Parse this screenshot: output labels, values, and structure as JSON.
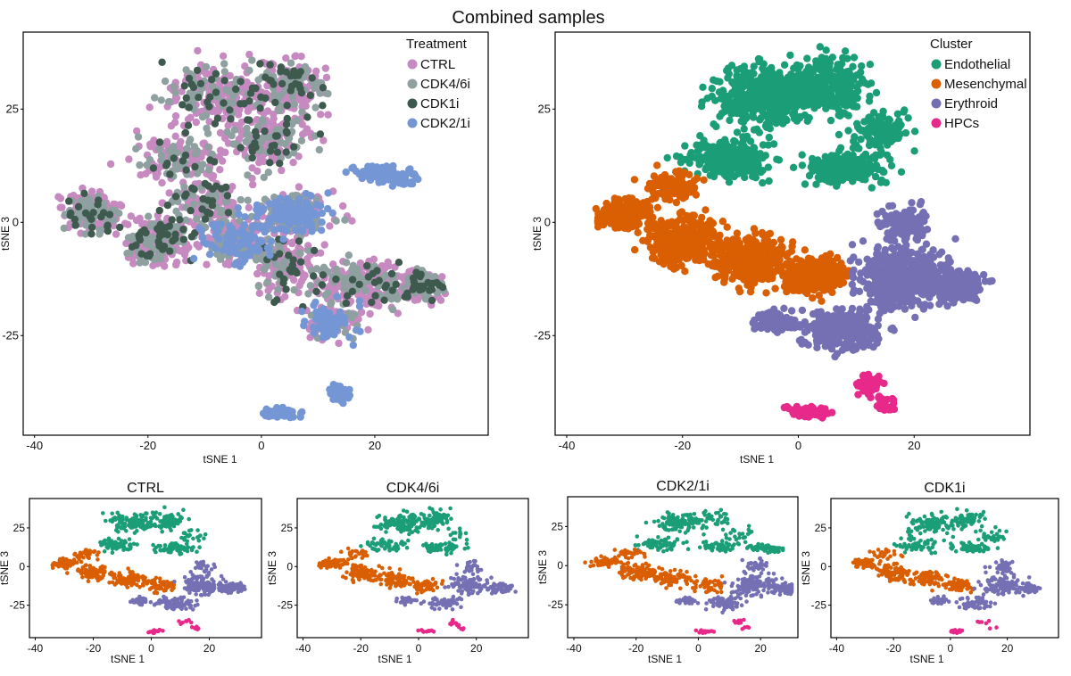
{
  "figure": {
    "title": "Combined samples"
  },
  "colors": {
    "CTRL": "#c68ac0",
    "CDK4/6i": "#8fa0a0",
    "CDK1i": "#3e5a4e",
    "CDK2/1i": "#7596d4",
    "Endothelial": "#1b9e77",
    "Mesenchymal": "#d95f02",
    "Erythroid": "#7570b3",
    "HPCs": "#e7298a"
  },
  "chart_data": [
    {
      "id": "combined-treatment",
      "type": "scatter",
      "title": "",
      "xlabel": "tSNE 1",
      "ylabel": "tSNE 3",
      "xlim": [
        -42,
        40
      ],
      "ylim": [
        -47,
        42
      ],
      "xticks": [
        -40,
        -20,
        0,
        20
      ],
      "yticks": [
        25,
        0,
        -25
      ],
      "legend": {
        "title": "Treatment",
        "position": "top-right",
        "entries": [
          "CTRL",
          "CDK4/6i",
          "CDK1i",
          "CDK2/1i"
        ]
      },
      "series": [
        {
          "name": "CTRL",
          "n": 1400,
          "regions": [
            "upper",
            "left",
            "right",
            "middle"
          ]
        },
        {
          "name": "CDK4/6i",
          "n": 600,
          "regions": [
            "upper",
            "left",
            "right",
            "middle"
          ]
        },
        {
          "name": "CDK1i",
          "n": 260,
          "regions": [
            "upper",
            "right",
            "left"
          ]
        },
        {
          "name": "CDK2/1i",
          "n": 460,
          "regions": [
            "middle",
            "tail",
            "bottom"
          ]
        }
      ]
    },
    {
      "id": "combined-cluster",
      "type": "scatter",
      "title": "",
      "xlabel": "tSNE 1",
      "ylabel": "tSNE 3",
      "xlim": [
        -42,
        40
      ],
      "ylim": [
        -47,
        42
      ],
      "xticks": [
        -40,
        -20,
        0,
        20
      ],
      "yticks": [
        25,
        0,
        -25
      ],
      "legend": {
        "title": "Cluster",
        "position": "top-right",
        "entries": [
          "Endothelial",
          "Mesenchymal",
          "Erythroid",
          "HPCs"
        ]
      },
      "series": [
        {
          "name": "Endothelial",
          "n": 1300,
          "regions": [
            "endo"
          ]
        },
        {
          "name": "Mesenchymal",
          "n": 1200,
          "regions": [
            "mes"
          ]
        },
        {
          "name": "Erythroid",
          "n": 1200,
          "regions": [
            "ery"
          ]
        },
        {
          "name": "HPCs",
          "n": 160,
          "regions": [
            "hpc"
          ]
        }
      ]
    },
    {
      "id": "ctrl",
      "type": "scatter",
      "title": "CTRL",
      "xlabel": "tSNE 1",
      "ylabel": "tSNE 3",
      "xlim": [
        -42,
        38
      ],
      "ylim": [
        -46,
        44
      ],
      "xticks": [
        -40,
        -20,
        0,
        20
      ],
      "yticks": [
        25,
        0,
        -25
      ],
      "series": [
        {
          "name": "Endothelial",
          "n": 320,
          "regions": [
            "endo"
          ]
        },
        {
          "name": "Mesenchymal",
          "n": 320,
          "regions": [
            "mes"
          ]
        },
        {
          "name": "Erythroid",
          "n": 320,
          "regions": [
            "ery"
          ]
        },
        {
          "name": "HPCs",
          "n": 30,
          "regions": [
            "hpc"
          ]
        }
      ]
    },
    {
      "id": "cdk46i",
      "type": "scatter",
      "title": "CDK4/6i",
      "xlabel": "tSNE 1",
      "ylabel": "tSNE 3",
      "xlim": [
        -42,
        38
      ],
      "ylim": [
        -46,
        44
      ],
      "xticks": [
        -40,
        -20,
        0,
        20
      ],
      "yticks": [
        25,
        0,
        -25
      ],
      "series": [
        {
          "name": "Endothelial",
          "n": 300,
          "regions": [
            "endo"
          ]
        },
        {
          "name": "Mesenchymal",
          "n": 280,
          "regions": [
            "mes"
          ]
        },
        {
          "name": "Erythroid",
          "n": 260,
          "regions": [
            "ery"
          ]
        },
        {
          "name": "HPCs",
          "n": 25,
          "regions": [
            "hpc"
          ]
        }
      ]
    },
    {
      "id": "cdk21i",
      "type": "scatter",
      "title": "CDK2/1i",
      "xlabel": "tSNE 1",
      "ylabel": "tSNE 3",
      "xlim": [
        -42,
        32
      ],
      "ylim": [
        -46,
        44
      ],
      "xticks": [
        -40,
        -20,
        0,
        20
      ],
      "yticks": [
        25,
        0,
        -25
      ],
      "series": [
        {
          "name": "Endothelial",
          "n": 330,
          "regions": [
            "endo",
            "tail"
          ]
        },
        {
          "name": "Mesenchymal",
          "n": 320,
          "regions": [
            "mes"
          ]
        },
        {
          "name": "Erythroid",
          "n": 320,
          "regions": [
            "ery"
          ]
        },
        {
          "name": "HPCs",
          "n": 25,
          "regions": [
            "hpc"
          ]
        }
      ]
    },
    {
      "id": "cdk1i",
      "type": "scatter",
      "title": "CDK1i",
      "xlabel": "tSNE 1",
      "ylabel": "tSNE 3",
      "xlim": [
        -42,
        38
      ],
      "ylim": [
        -46,
        44
      ],
      "xticks": [
        -40,
        -20,
        0,
        20
      ],
      "yticks": [
        25,
        0,
        -25
      ],
      "series": [
        {
          "name": "Endothelial",
          "n": 300,
          "regions": [
            "endo"
          ]
        },
        {
          "name": "Mesenchymal",
          "n": 300,
          "regions": [
            "mes"
          ]
        },
        {
          "name": "Erythroid",
          "n": 260,
          "regions": [
            "ery"
          ]
        },
        {
          "name": "HPCs",
          "n": 25,
          "regions": [
            "hpc"
          ]
        }
      ]
    }
  ]
}
